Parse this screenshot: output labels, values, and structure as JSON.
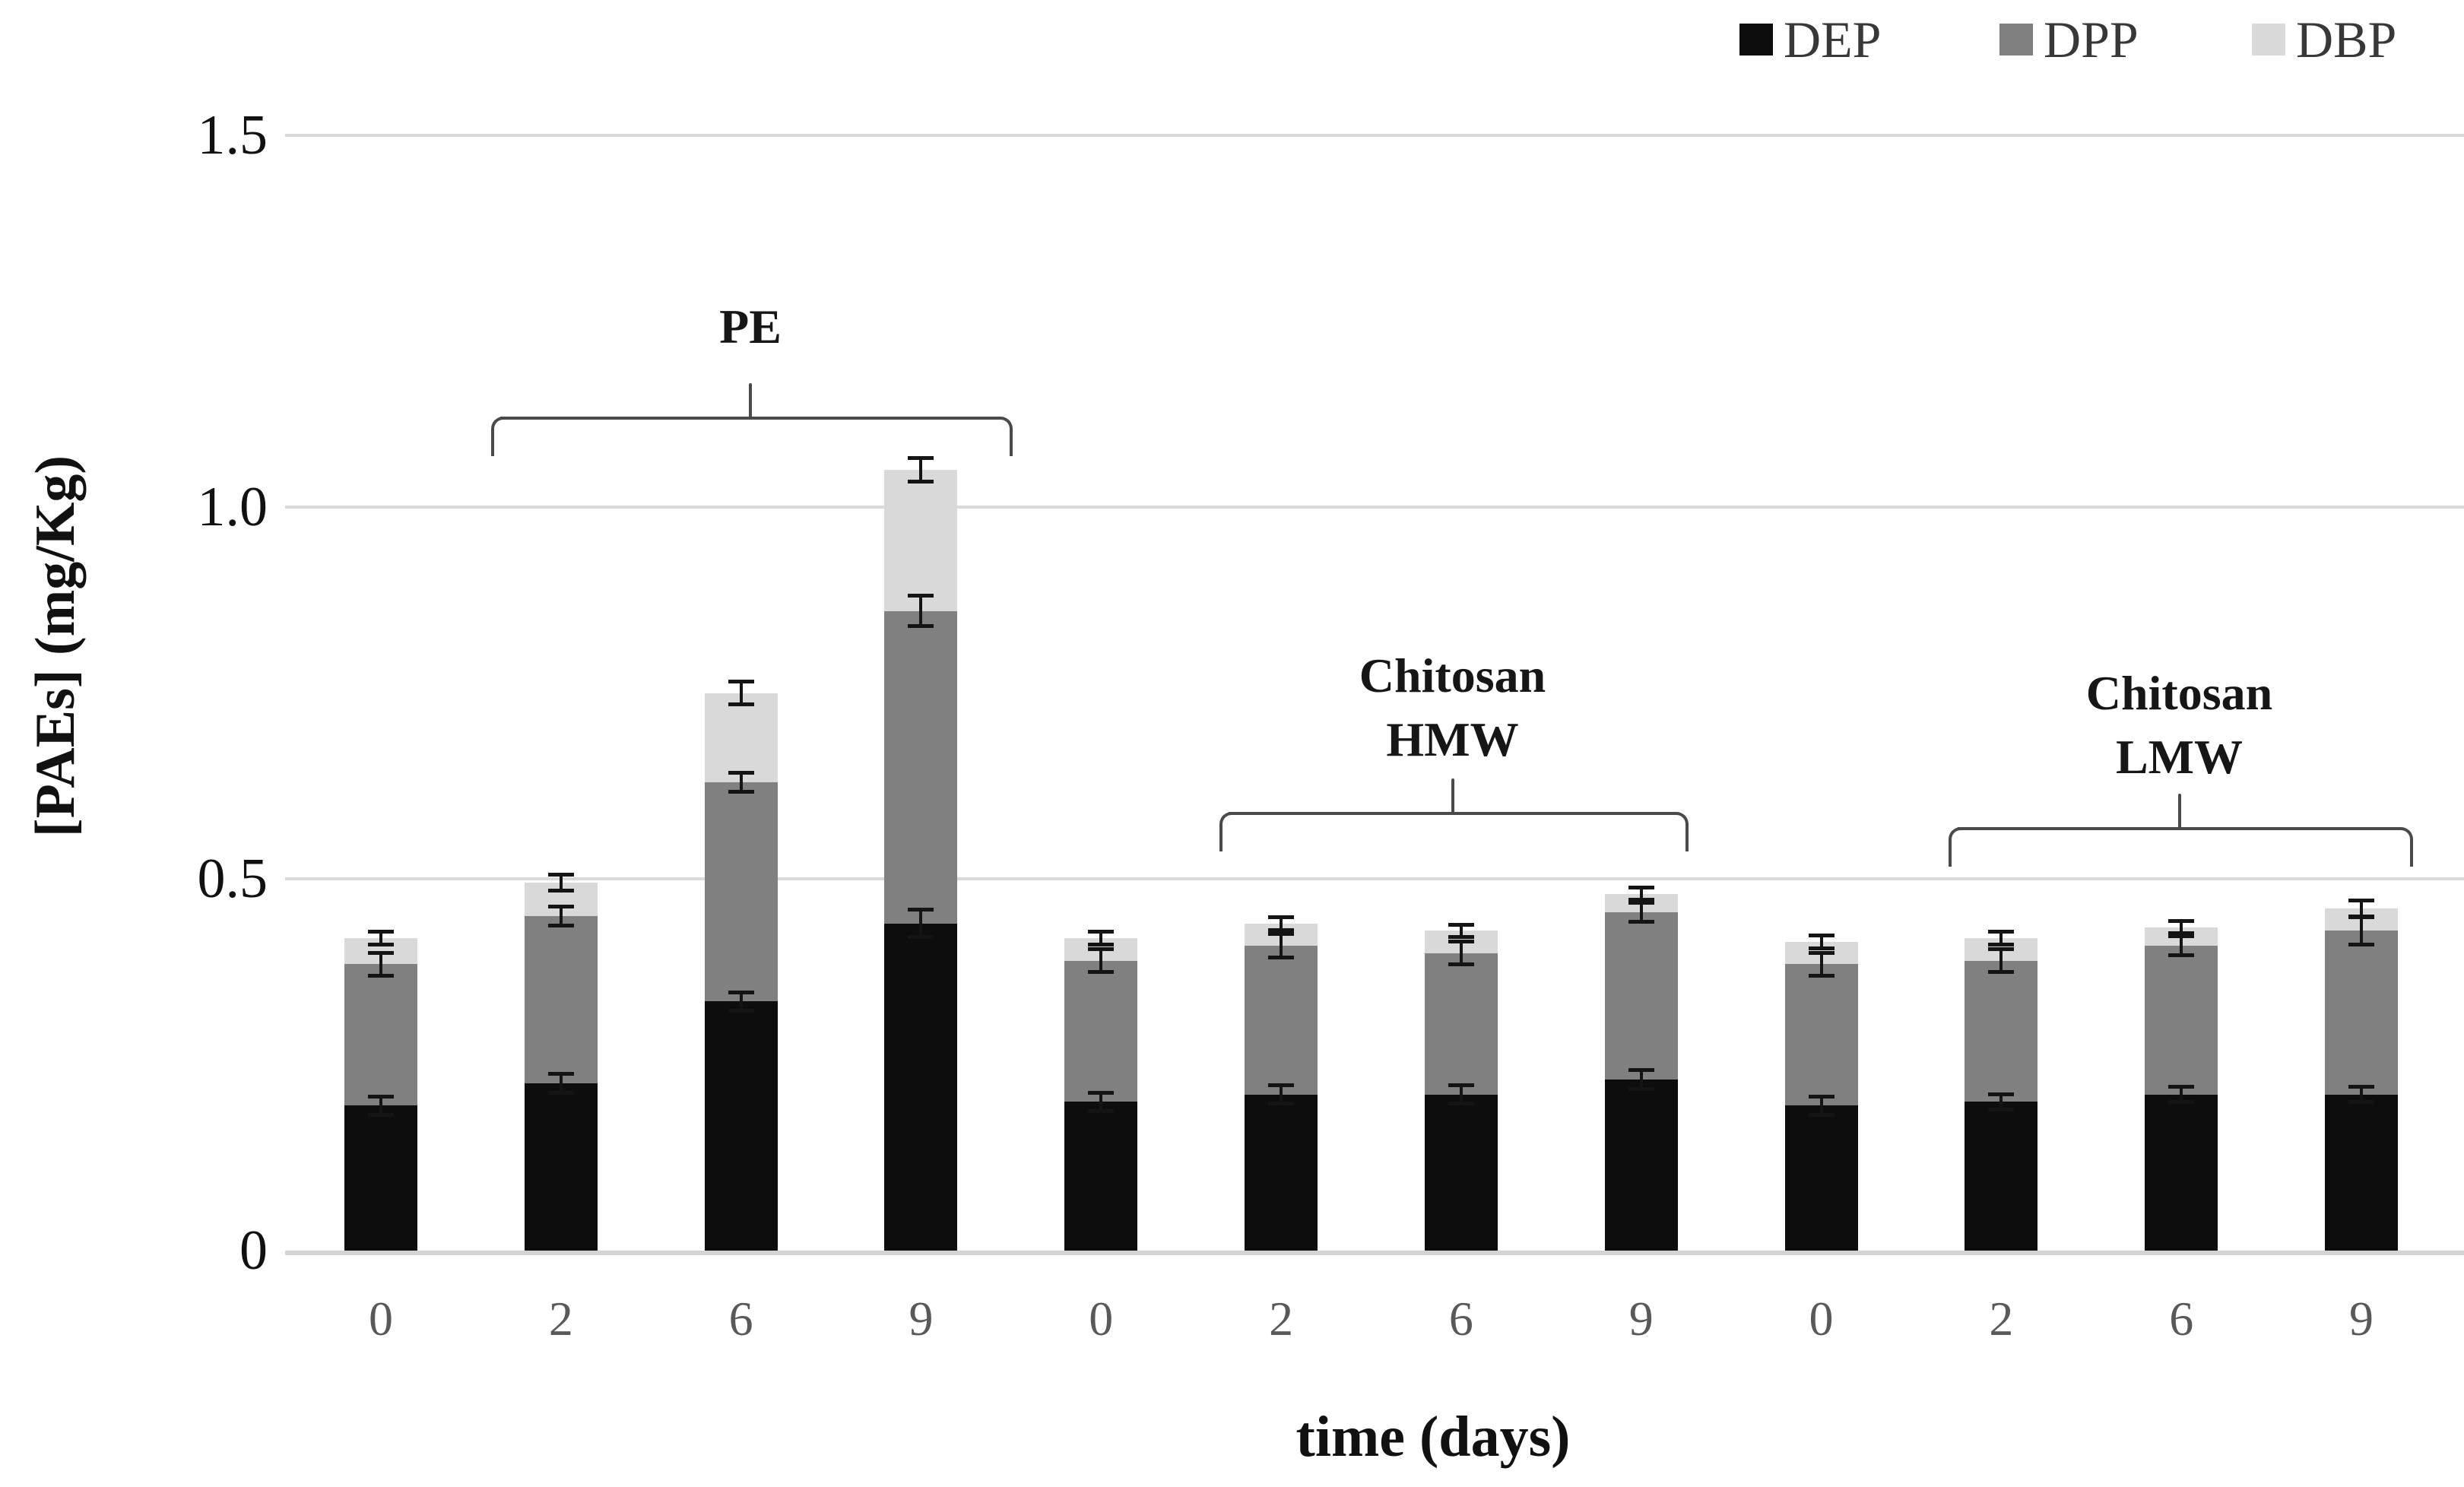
{
  "figure": {
    "y_axis_title": "[PAEs] (mg/Kg)",
    "x_axis_title": "time (days)"
  },
  "legend": [
    {
      "name": "DEP",
      "color": "#0d0d0d"
    },
    {
      "name": "DPP",
      "color": "#808080"
    },
    {
      "name": "DBP",
      "color": "#d9d9d9"
    }
  ],
  "chart_data": {
    "type": "bar",
    "stacked": true,
    "title": "",
    "xlabel": "time (days)",
    "ylabel": "[PAEs] (mg/Kg)",
    "ylim": [
      0,
      1.5
    ],
    "grid": true,
    "legend_position": "top-right",
    "y_ticks": [
      {
        "value": 0,
        "label": "0"
      },
      {
        "value": 0.5,
        "label": "0.5"
      },
      {
        "value": 1.0,
        "label": "1.0"
      },
      {
        "value": 1.5,
        "label": "1.5"
      }
    ],
    "series_names": [
      "DEP",
      "DPP",
      "DBP"
    ],
    "series_colors": [
      "#0d0d0d",
      "#808080",
      "#d9d9d9"
    ],
    "groups": [
      {
        "label_lines": [
          "PE"
        ],
        "bars": [
          {
            "day": "0",
            "DEP": 0.195,
            "DPP": 0.19,
            "DBP": 0.035,
            "err_DEP": 0.012,
            "err_DPP": 0.015,
            "err_total": 0.008
          },
          {
            "day": "2",
            "DEP": 0.225,
            "DPP": 0.225,
            "DBP": 0.045,
            "err_DEP": 0.012,
            "err_DPP": 0.012,
            "err_total": 0.01
          },
          {
            "day": "6",
            "DEP": 0.335,
            "DPP": 0.295,
            "DBP": 0.12,
            "err_DEP": 0.012,
            "err_DPP": 0.012,
            "err_total": 0.015
          },
          {
            "day": "9",
            "DEP": 0.44,
            "DPP": 0.42,
            "DBP": 0.19,
            "err_DEP": 0.018,
            "err_DPP": 0.02,
            "err_total": 0.015
          }
        ]
      },
      {
        "label_lines": [
          "Chitosan",
          "HMW"
        ],
        "bars": [
          {
            "day": "0",
            "DEP": 0.2,
            "DPP": 0.19,
            "DBP": 0.03,
            "err_DEP": 0.012,
            "err_DPP": 0.015,
            "err_total": 0.008
          },
          {
            "day": "2",
            "DEP": 0.21,
            "DPP": 0.2,
            "DBP": 0.03,
            "err_DEP": 0.012,
            "err_DPP": 0.015,
            "err_total": 0.008
          },
          {
            "day": "6",
            "DEP": 0.21,
            "DPP": 0.19,
            "DBP": 0.03,
            "err_DEP": 0.012,
            "err_DPP": 0.015,
            "err_total": 0.008
          },
          {
            "day": "9",
            "DEP": 0.23,
            "DPP": 0.225,
            "DBP": 0.025,
            "err_DEP": 0.012,
            "err_DPP": 0.012,
            "err_total": 0.008
          }
        ]
      },
      {
        "label_lines": [
          "Chitosan",
          "LMW"
        ],
        "bars": [
          {
            "day": "0",
            "DEP": 0.195,
            "DPP": 0.19,
            "DBP": 0.03,
            "err_DEP": 0.012,
            "err_DPP": 0.015,
            "err_total": 0.008
          },
          {
            "day": "2",
            "DEP": 0.2,
            "DPP": 0.19,
            "DBP": 0.03,
            "err_DEP": 0.01,
            "err_DPP": 0.015,
            "err_total": 0.008
          },
          {
            "day": "6",
            "DEP": 0.21,
            "DPP": 0.2,
            "DBP": 0.025,
            "err_DEP": 0.01,
            "err_DPP": 0.012,
            "err_total": 0.008
          },
          {
            "day": "9",
            "DEP": 0.21,
            "DPP": 0.22,
            "DBP": 0.03,
            "err_DEP": 0.01,
            "err_DPP": 0.018,
            "err_total": 0.01
          }
        ]
      }
    ]
  }
}
